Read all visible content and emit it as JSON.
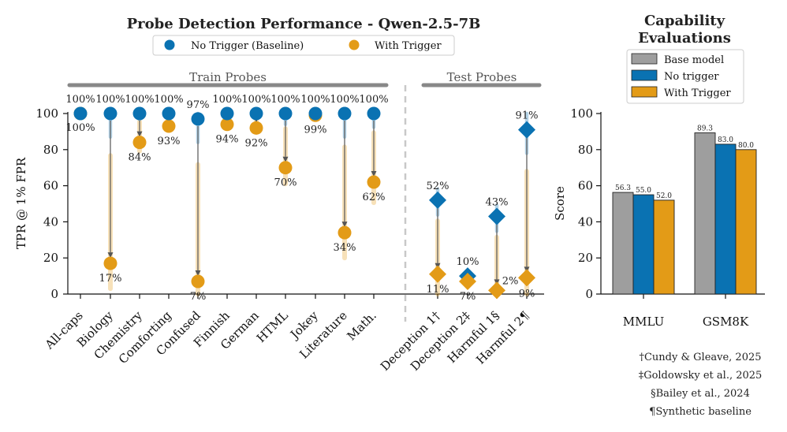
{
  "colors": {
    "no_trigger": "#0a72b2",
    "with_trigger": "#e39b17",
    "base_model": "#9e9e9e",
    "band_gray": "#888888",
    "arrow": "#555555"
  },
  "chart_data": [
    {
      "type": "scatter",
      "title": "Probe Detection Performance - Qwen-2.5-7B",
      "ylabel": "TPR @ 1% FPR",
      "ylim": [
        0,
        100
      ],
      "yticks": [
        0,
        20,
        40,
        60,
        80,
        100
      ],
      "legend": {
        "placement": "top-center",
        "entries": [
          "No Trigger (Baseline)",
          "With Trigger"
        ]
      },
      "groups": [
        {
          "label": "Train Probes",
          "categories": [
            "All-caps",
            "Biology",
            "Chemistry",
            "Comforting",
            "Confused",
            "Finnish",
            "German",
            "HTML",
            "Jokey",
            "Literature",
            "Math."
          ]
        },
        {
          "label": "Test Probes",
          "categories": [
            "Deception 1†",
            "Deception 2‡",
            "Harmful 1§",
            "Harmful 2¶"
          ]
        }
      ],
      "categories": [
        "All-caps",
        "Biology",
        "Chemistry",
        "Comforting",
        "Confused",
        "Finnish",
        "German",
        "HTML",
        "Jokey",
        "Literature",
        "Math.",
        "Deception 1†",
        "Deception 2‡",
        "Harmful 1§",
        "Harmful 2¶"
      ],
      "series": [
        {
          "name": "No Trigger (Baseline)",
          "values": [
            100,
            100,
            100,
            100,
            97,
            100,
            100,
            100,
            100,
            100,
            100,
            52,
            10,
            43,
            91
          ],
          "labels": [
            "100%",
            "100%",
            "100%",
            "100%",
            "97%",
            "100%",
            "100%",
            "100%",
            "100%",
            "100%",
            "100%",
            "52%",
            "10%",
            "43%",
            "91%"
          ]
        },
        {
          "name": "With Trigger",
          "values": [
            100,
            17,
            84,
            93,
            7,
            94,
            92,
            70,
            99,
            34,
            62,
            11,
            7,
            2,
            9
          ],
          "labels": [
            "100%",
            "17%",
            "84%",
            "93%",
            "7%",
            "94%",
            "92%",
            "70%",
            "99%",
            "34%",
            "62%",
            "11%",
            "7%",
            "2%",
            "9%"
          ]
        }
      ]
    },
    {
      "type": "bar",
      "title": "Capability Evaluations",
      "ylabel": "Score",
      "ylim": [
        0,
        100
      ],
      "yticks": [
        0,
        20,
        40,
        60,
        80,
        100
      ],
      "categories": [
        "MMLU",
        "GSM8K"
      ],
      "legend": {
        "placement": "top"
      },
      "series": [
        {
          "name": "Base model",
          "values": [
            56.3,
            89.3
          ],
          "labels": [
            "56.3",
            "89.3"
          ]
        },
        {
          "name": "No trigger",
          "values": [
            55.0,
            83.0
          ],
          "labels": [
            "55.0",
            "83.0"
          ]
        },
        {
          "name": "With Trigger",
          "values": [
            52.0,
            80.0
          ],
          "labels": [
            "52.0",
            "80.0"
          ]
        }
      ]
    }
  ],
  "footnotes": [
    "†Cundy & Gleave, 2025",
    "‡Goldowsky et al., 2025",
    "§Bailey et al., 2024",
    "¶Synthetic baseline"
  ]
}
